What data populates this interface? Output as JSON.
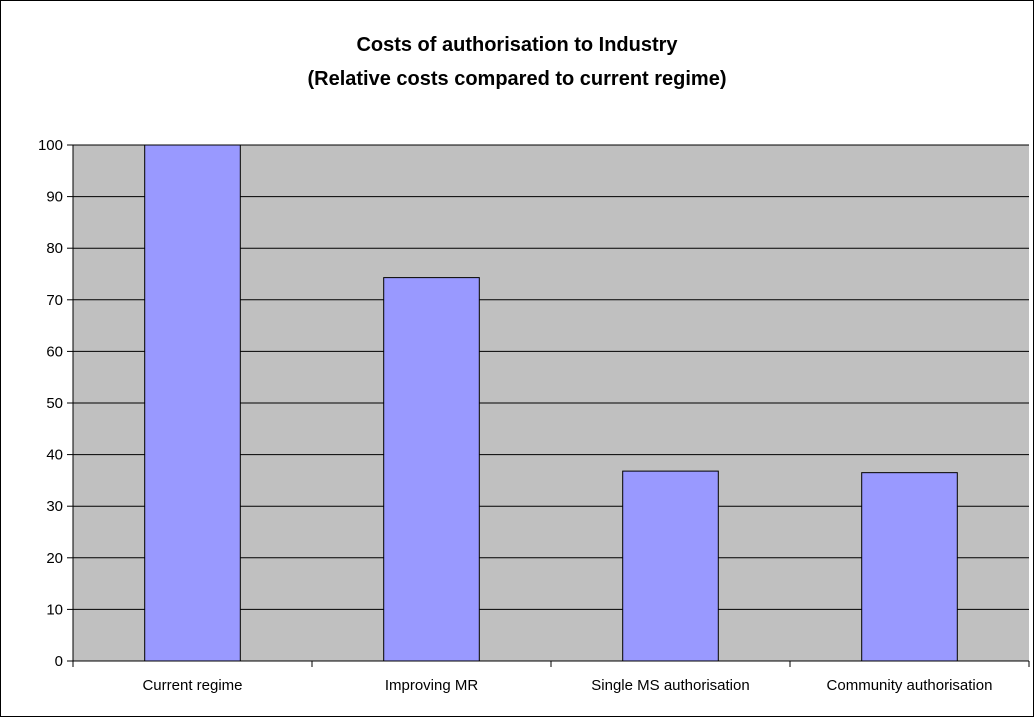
{
  "chart_data": {
    "type": "bar",
    "title": "Costs of authorisation to Industry",
    "subtitle": "(Relative costs compared to current regime)",
    "xlabel": "",
    "ylabel": "",
    "categories": [
      "Current regime",
      "Improving MR",
      "Single MS authorisation",
      "Community authorisation"
    ],
    "values": [
      100,
      74.3,
      36.8,
      36.5
    ],
    "ylim": [
      0,
      100
    ],
    "yticks": [
      "0",
      "10",
      "20",
      "30",
      "40",
      "50",
      "60",
      "70",
      "80",
      "90",
      "100"
    ],
    "grid": "horizontal",
    "legend": "none",
    "colors": {
      "bar_fill": "#9999FF",
      "bar_stroke": "#000000",
      "plot_background": "#C0C0C0",
      "gridline": "#000000"
    }
  }
}
